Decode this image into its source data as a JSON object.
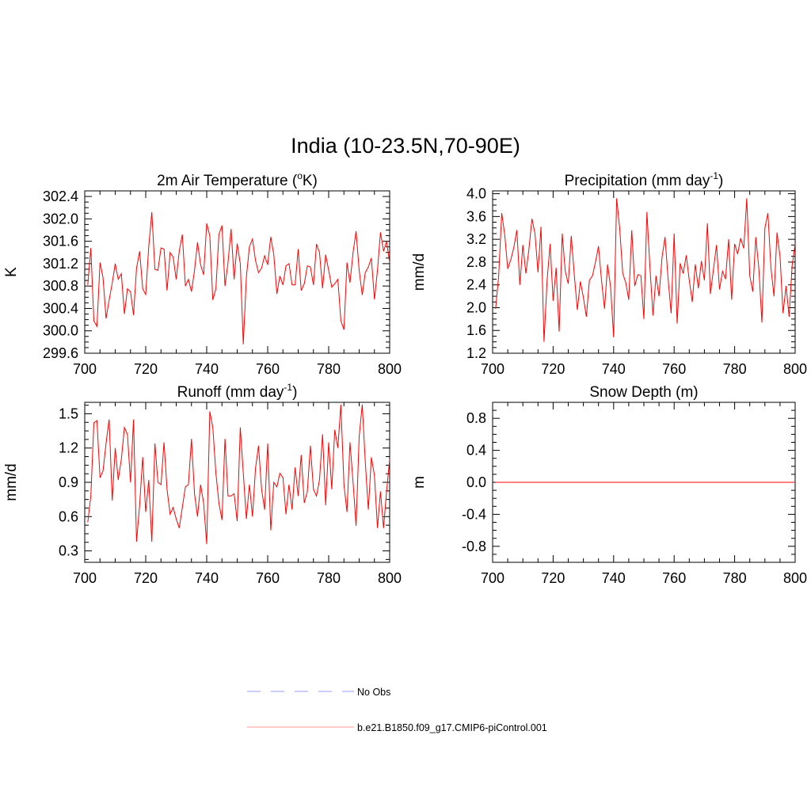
{
  "title": "India (10-23.5N,70-90E)",
  "series_color": "#ff0000",
  "obs_color": "#9999ff",
  "legend": [
    {
      "label": "No Obs",
      "style": "dashed",
      "color": "#9999ff"
    },
    {
      "label": "b.e21.B1850.f09_g17.CMIP6-piControl.001",
      "style": "solid",
      "color": "#ff9999"
    }
  ],
  "chart_data": [
    {
      "type": "line",
      "title": "2m Air Temperature (",
      "title_sup": "o",
      "title_after": "K)",
      "ylabel": "K",
      "xlim": [
        700,
        800
      ],
      "ylim": [
        299.6,
        302.5
      ],
      "xticks": [
        "700",
        "720",
        "740",
        "760",
        "780",
        "800"
      ],
      "yticks": [
        "299.6",
        "300.0",
        "300.4",
        "300.8",
        "301.2",
        "301.6",
        "302.0",
        "302.4"
      ],
      "x_start": 701,
      "values": [
        300.82,
        301.48,
        300.18,
        300.08,
        301.22,
        300.95,
        300.22,
        300.55,
        300.85,
        301.2,
        300.92,
        301.02,
        300.3,
        300.75,
        300.7,
        300.28,
        301.12,
        301.42,
        300.75,
        300.65,
        301.5,
        302.12,
        301.1,
        301.08,
        301.48,
        301.46,
        300.72,
        301.4,
        301.32,
        300.92,
        301.42,
        301.72,
        300.8,
        300.92,
        300.7,
        301.08,
        301.58,
        301.18,
        301.0,
        301.92,
        301.7,
        300.55,
        300.75,
        301.72,
        301.88,
        300.8,
        301.22,
        301.82,
        300.92,
        301.56,
        301.2,
        299.76,
        300.96,
        301.5,
        301.64,
        301.26,
        301.04,
        301.12,
        301.34,
        301.18,
        301.68,
        301.36,
        300.66,
        300.98,
        300.82,
        301.16,
        301.2,
        300.82,
        300.82,
        301.46,
        300.72,
        300.84,
        301.16,
        301.14,
        300.82,
        301.55,
        301.4,
        300.76,
        301.36,
        301.08,
        300.78,
        300.84,
        300.92,
        300.18,
        300.02,
        301.22,
        300.86,
        301.4,
        301.78,
        301.08,
        300.64,
        301.04,
        301.14,
        301.3,
        300.56,
        301.08,
        301.76,
        301.42,
        301.6,
        301.22
      ]
    },
    {
      "type": "line",
      "title": "Precipitation (mm day",
      "title_sup": "-1",
      "title_after": ")",
      "ylabel": "mm/d",
      "xlim": [
        700,
        800
      ],
      "ylim": [
        1.2,
        4.05
      ],
      "xticks": [
        "700",
        "720",
        "740",
        "760",
        "780",
        "800"
      ],
      "yticks": [
        "1.2",
        "1.6",
        "2.0",
        "2.4",
        "2.8",
        "3.2",
        "3.6",
        "4.0"
      ],
      "x_start": 701,
      "values": [
        1.98,
        2.55,
        3.66,
        3.28,
        2.68,
        2.84,
        3.05,
        3.36,
        2.4,
        3.1,
        2.6,
        3.02,
        3.56,
        3.3,
        2.62,
        3.42,
        1.4,
        2.48,
        3.12,
        2.12,
        2.7,
        1.58,
        3.3,
        2.64,
        2.42,
        3.26,
        2.58,
        1.96,
        2.46,
        2.18,
        1.84,
        2.48,
        2.56,
        2.8,
        3.08,
        2.48,
        1.98,
        2.76,
        2.36,
        1.48,
        3.92,
        3.4,
        2.6,
        2.44,
        2.14,
        3.36,
        2.38,
        2.58,
        2.56,
        1.8,
        3.68,
        2.72,
        1.86,
        2.56,
        2.2,
        2.88,
        3.24,
        2.5,
        1.9,
        3.3,
        1.72,
        2.78,
        2.6,
        2.92,
        2.48,
        2.1,
        2.76,
        2.34,
        2.82,
        2.48,
        3.48,
        2.24,
        2.68,
        3.1,
        2.32,
        2.64,
        2.5,
        3.2,
        2.14,
        3.12,
        2.94,
        3.22,
        3.04,
        3.92,
        2.56,
        2.28,
        3.24,
        2.68,
        1.74,
        3.4,
        3.66,
        2.7,
        2.2,
        3.32,
        2.9,
        1.9,
        2.38,
        1.84,
        2.74,
        3.12
      ]
    },
    {
      "type": "line",
      "title": "Runoff (mm day",
      "title_sup": "-1",
      "title_after": ")",
      "ylabel": "mm/d",
      "xlim": [
        700,
        800
      ],
      "ylim": [
        0.2,
        1.6
      ],
      "xticks": [
        "700",
        "720",
        "740",
        "760",
        "780",
        "800"
      ],
      "yticks": [
        "0.3",
        "0.6",
        "0.9",
        "1.2",
        "1.5"
      ],
      "x_start": 701,
      "values": [
        0.55,
        0.78,
        1.42,
        1.44,
        0.94,
        1.0,
        1.24,
        1.45,
        0.74,
        1.2,
        0.92,
        1.1,
        1.38,
        1.32,
        0.9,
        1.45,
        0.38,
        0.7,
        1.12,
        0.64,
        0.92,
        0.38,
        1.24,
        0.9,
        0.88,
        1.25,
        0.84,
        0.62,
        0.68,
        0.58,
        0.5,
        0.68,
        0.86,
        0.88,
        1.28,
        0.8,
        0.6,
        0.88,
        0.72,
        0.36,
        1.52,
        1.38,
        0.98,
        0.72,
        0.57,
        1.28,
        0.78,
        0.78,
        0.8,
        0.56,
        1.38,
        0.98,
        0.58,
        0.88,
        0.6,
        1.02,
        1.22,
        0.84,
        0.66,
        1.24,
        0.48,
        0.9,
        0.86,
        0.98,
        0.94,
        0.62,
        0.88,
        0.66,
        1.03,
        0.78,
        1.14,
        0.72,
        0.82,
        1.22,
        0.84,
        0.78,
        0.92,
        1.32,
        0.7,
        1.25,
        0.84,
        1.36,
        1.2,
        1.58,
        0.88,
        0.64,
        1.25,
        0.9,
        0.52,
        1.3,
        1.58,
        1.08,
        0.66,
        1.12,
        0.96,
        0.5,
        0.82,
        0.5,
        0.82,
        1.1
      ]
    },
    {
      "type": "line",
      "title": "Snow Depth (m)",
      "title_sup": "",
      "title_after": "",
      "ylabel": "m",
      "xlim": [
        700,
        800
      ],
      "ylim": [
        -1.0,
        1.0
      ],
      "xticks": [
        "700",
        "720",
        "740",
        "760",
        "780",
        "800"
      ],
      "yticks": [
        "-0.8",
        "-0.4",
        "0.0",
        "0.4",
        "0.8"
      ],
      "x_start": 701,
      "values": "zeros"
    }
  ]
}
